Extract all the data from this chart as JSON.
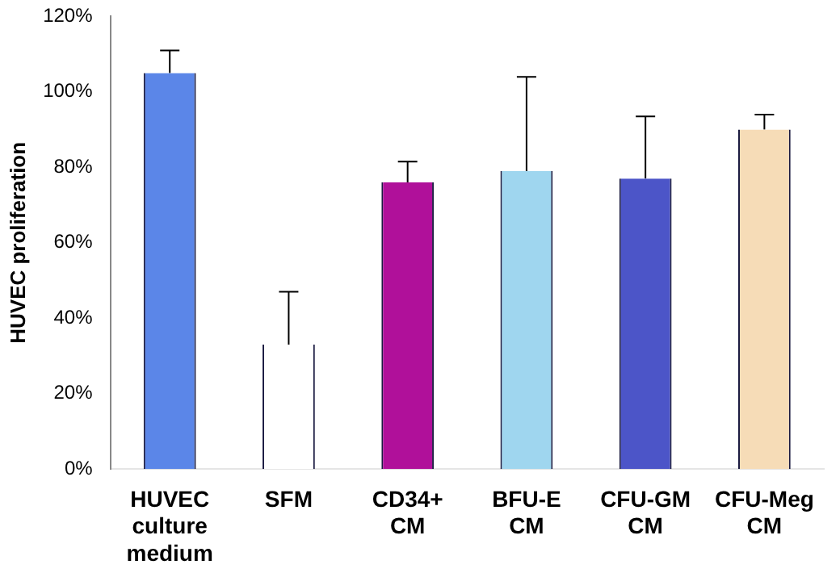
{
  "chart_data": {
    "type": "bar",
    "ylabel": "HUVEC proliferation",
    "categories": [
      "HUVEC culture medium",
      "SFM",
      "CD34+ CM",
      "BFU-E CM",
      "CFU-GM CM",
      "CFU-Meg CM"
    ],
    "values": [
      105,
      33,
      76,
      79,
      77,
      90
    ],
    "colors": [
      "#5b86e8",
      "#ffffff",
      "#b0109a",
      "#9fd6ef",
      "#4c55c8",
      "#f6dcb7"
    ],
    "errors": [
      [
        105,
        111
      ],
      [
        33,
        47
      ],
      [
        76,
        81.5
      ],
      [
        79,
        104
      ],
      [
        77,
        93.5
      ],
      [
        90,
        94
      ]
    ],
    "ylim": [
      0,
      120
    ],
    "yticks": [
      {
        "value": 0,
        "label": "0%"
      },
      {
        "value": 20,
        "label": "20%"
      },
      {
        "value": 40,
        "label": "40%"
      },
      {
        "value": 60,
        "label": "60%"
      },
      {
        "value": 80,
        "label": "80%"
      },
      {
        "value": 100,
        "label": "100%"
      },
      {
        "value": 120,
        "label": "120%"
      }
    ],
    "grid": false,
    "legend": false
  }
}
